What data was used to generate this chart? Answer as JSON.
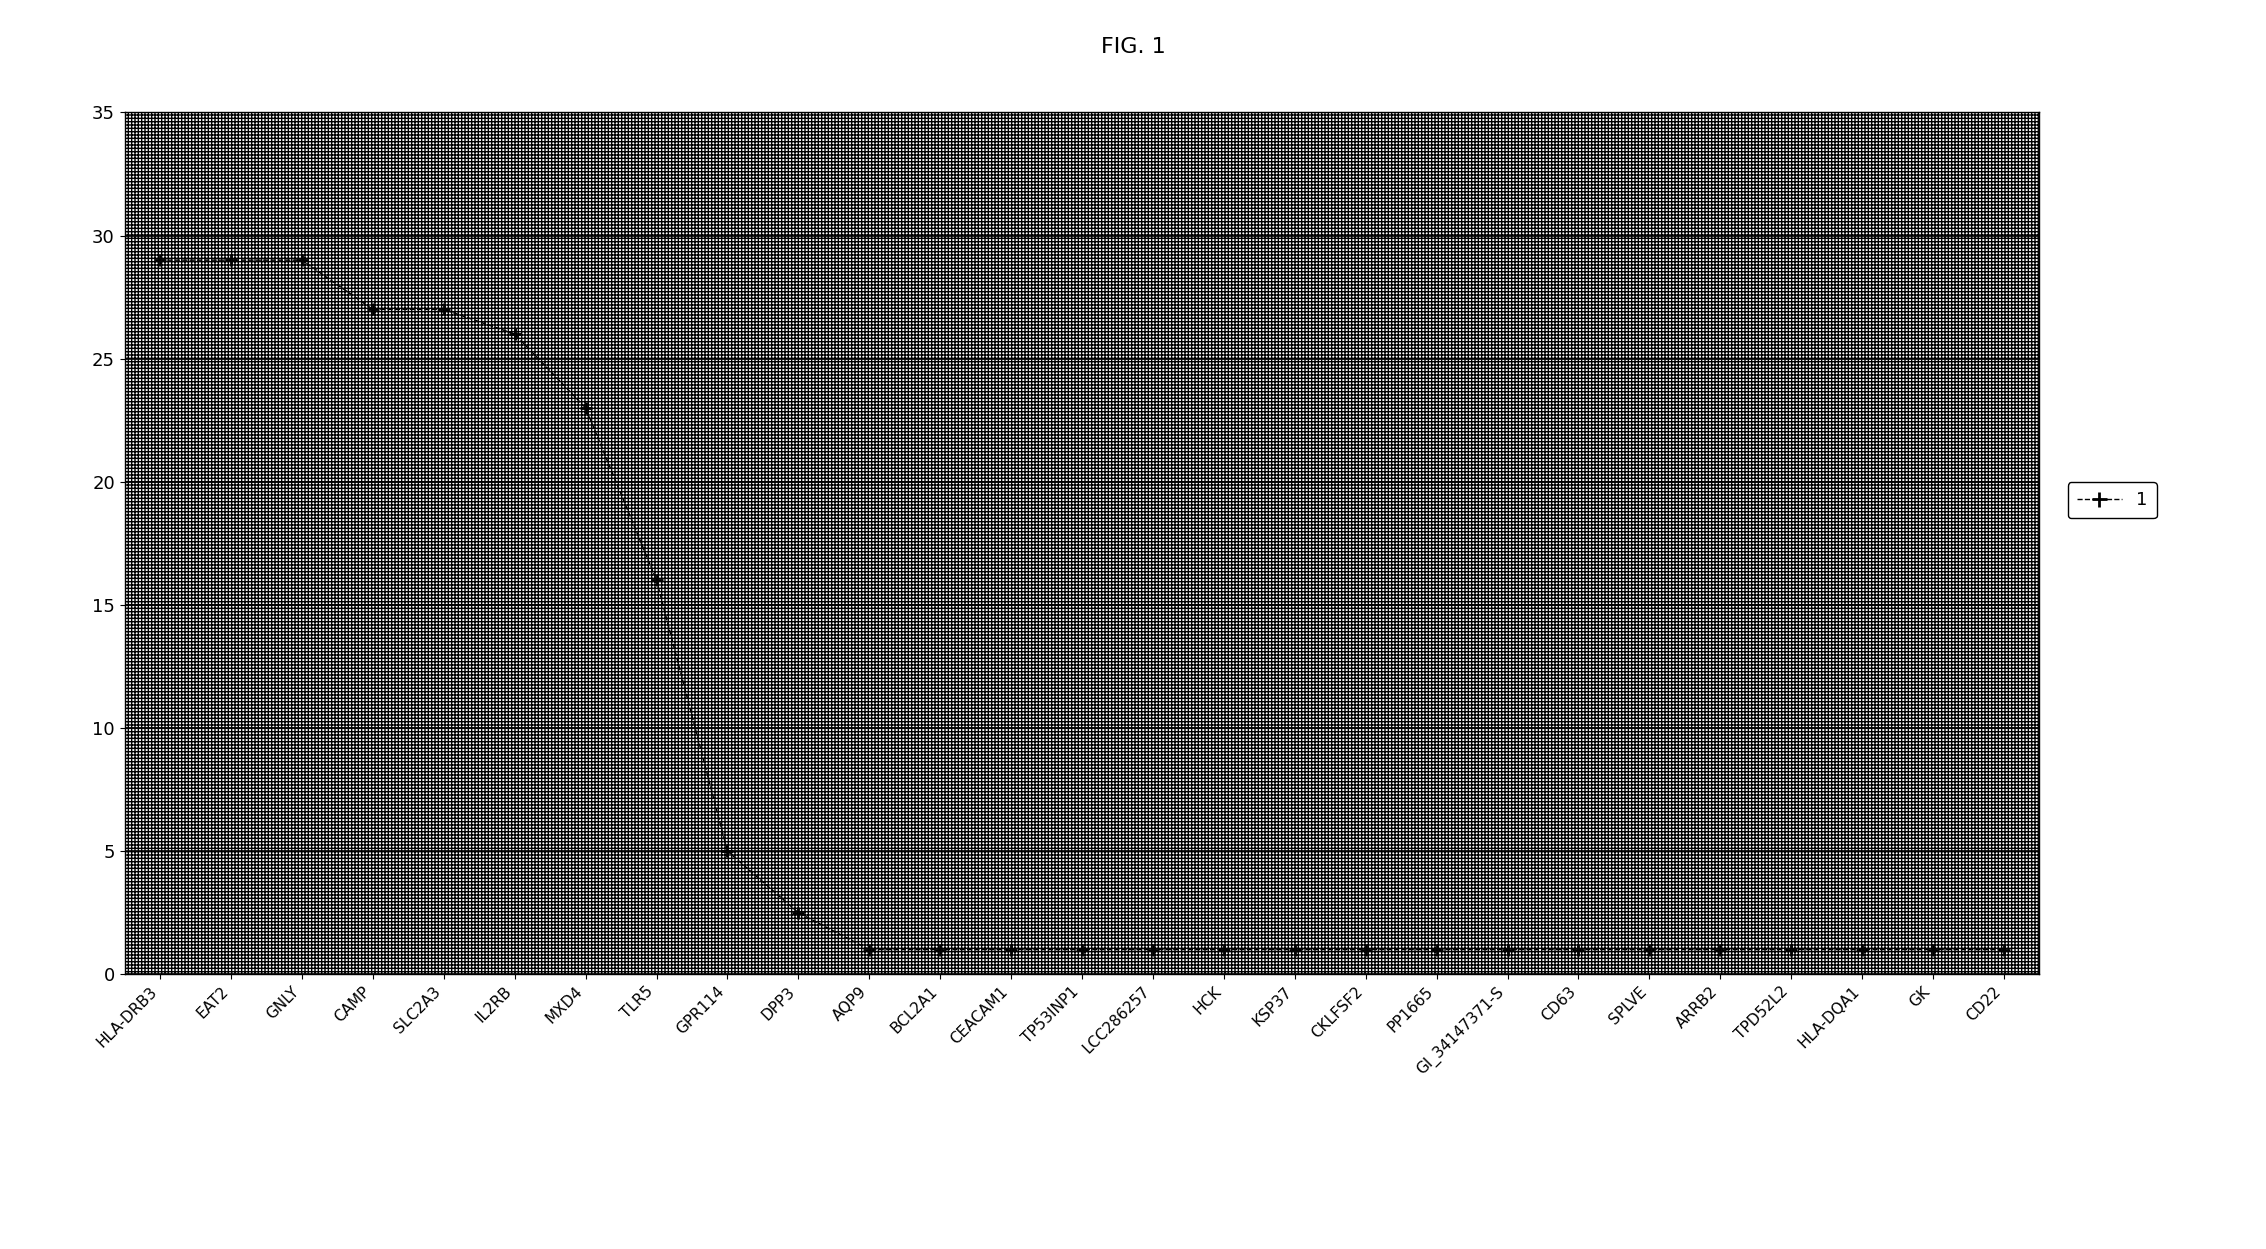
{
  "title": "FIG. 1",
  "categories": [
    "HLA-DRB3",
    "EAT2",
    "GNLY",
    "CAMP",
    "SLC2A3",
    "IL2RB",
    "MXD4",
    "TLR5",
    "GPR114",
    "DPP3",
    "AQP9",
    "BCL2A1",
    "CEACAM1",
    "TP53INP1",
    "LCC286257",
    "HCK",
    "KSP37",
    "CKLFSF2",
    "PP1665",
    "GI_34147371-S",
    "CD63",
    "SPLVE",
    "ARRB2",
    "TPD52L2",
    "HLA-DQA1",
    "GK",
    "CD22"
  ],
  "values": [
    29.0,
    29.0,
    29.0,
    27.0,
    27.0,
    26.0,
    23.0,
    16.0,
    5.0,
    2.5,
    1.0,
    1.0,
    1.0,
    1.0,
    1.0,
    1.0,
    1.0,
    1.0,
    1.0,
    1.0,
    1.0,
    1.0,
    1.0,
    1.0,
    1.0,
    1.0,
    1.0
  ],
  "ylim": [
    0,
    35
  ],
  "yticks": [
    0,
    5,
    10,
    15,
    20,
    25,
    30,
    35
  ],
  "line_color": "#000000",
  "line_style": "--",
  "marker": "+",
  "marker_size": 9,
  "marker_color": "#000000",
  "grid_color": "#000000",
  "legend_label": "1",
  "title_fontsize": 16,
  "hatch_pattern": "+++++",
  "bg_facecolor": "white"
}
